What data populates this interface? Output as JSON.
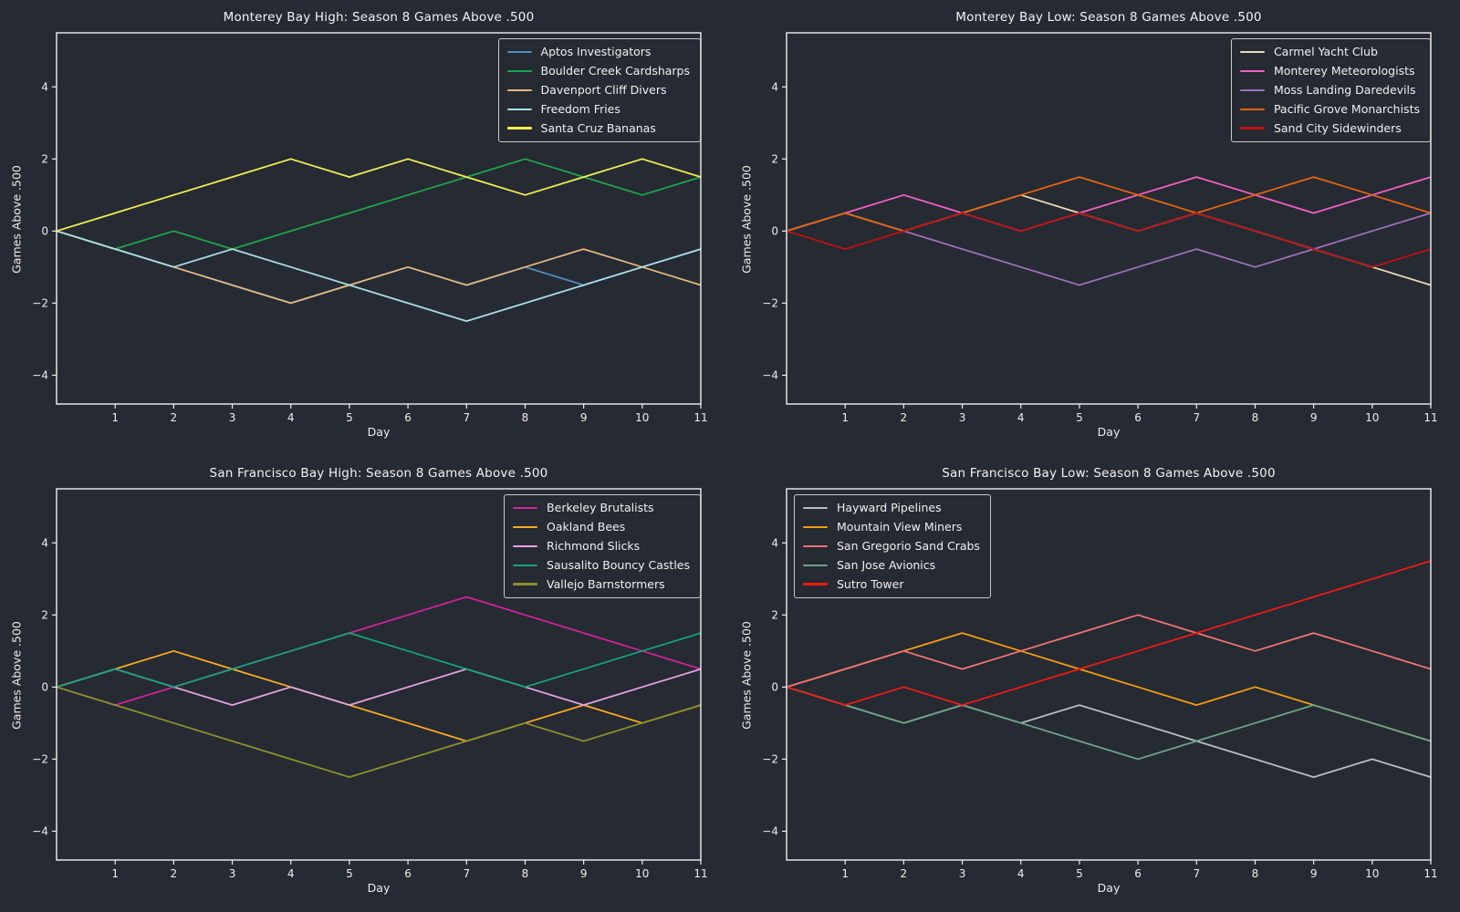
{
  "figure": {
    "background": "#262a32",
    "spine_color": "#f0f0f0",
    "text_color": "#ededed",
    "tick_color": "#ededed"
  },
  "chart_data": [
    {
      "type": "line",
      "title": "Monterey Bay High: Season 8 Games Above .500",
      "xlabel": "Day",
      "ylabel": "Games Above .500",
      "x": [
        0,
        1,
        2,
        3,
        4,
        5,
        6,
        7,
        8,
        9,
        10,
        11
      ],
      "xticks": [
        1,
        2,
        3,
        4,
        5,
        6,
        7,
        8,
        9,
        10,
        11
      ],
      "yticks": [
        -4,
        -2,
        0,
        2,
        4
      ],
      "xlim": [
        0,
        11
      ],
      "ylim": [
        -4.8,
        5.5
      ],
      "grid": false,
      "legend_position": "upper-right",
      "series": [
        {
          "name": "Aptos Investigators",
          "color": "#4e8fc7",
          "values": [
            0,
            -0.5,
            -1,
            -1.5,
            -2,
            -1.5,
            -1,
            -1.5,
            -1,
            -1.5,
            -1,
            -0.5
          ]
        },
        {
          "name": "Boulder Creek Cardsharps",
          "color": "#1ea64b",
          "values": [
            0,
            -0.5,
            0,
            -0.5,
            0,
            0.5,
            1,
            1.5,
            2,
            1.5,
            1,
            1.5
          ]
        },
        {
          "name": "Davenport Cliff Divers",
          "color": "#e2b77e",
          "values": [
            0,
            -0.5,
            -1,
            -1.5,
            -2,
            -1.5,
            -1,
            -1.5,
            -1,
            -0.5,
            -1,
            -1.5
          ]
        },
        {
          "name": "Freedom Fries",
          "color": "#a9dde6",
          "values": [
            0,
            -0.5,
            -1,
            -0.5,
            -1,
            -1.5,
            -2,
            -2.5,
            -2,
            -1.5,
            -1,
            -0.5
          ]
        },
        {
          "name": "Santa Cruz Bananas",
          "color": "#f2ee55",
          "values": [
            0,
            0.5,
            1,
            1.5,
            2,
            1.5,
            2,
            1.5,
            1,
            1.5,
            2,
            1.5
          ]
        }
      ]
    },
    {
      "type": "line",
      "title": "Monterey Bay Low: Season 8 Games Above .500",
      "xlabel": "Day",
      "ylabel": "Games Above .500",
      "x": [
        0,
        1,
        2,
        3,
        4,
        5,
        6,
        7,
        8,
        9,
        10,
        11
      ],
      "xticks": [
        1,
        2,
        3,
        4,
        5,
        6,
        7,
        8,
        9,
        10,
        11
      ],
      "yticks": [
        -4,
        -2,
        0,
        2,
        4
      ],
      "xlim": [
        0,
        11
      ],
      "ylim": [
        -4.8,
        5.5
      ],
      "grid": false,
      "legend_position": "upper-right",
      "series": [
        {
          "name": "Carmel Yacht Club",
          "color": "#e9d8b6",
          "values": [
            0,
            0.5,
            0,
            0.5,
            1,
            0.5,
            0,
            0.5,
            0,
            -0.5,
            -1,
            -1.5
          ]
        },
        {
          "name": "Monterey Meteorologists",
          "color": "#f55fc4",
          "values": [
            0,
            0.5,
            1,
            0.5,
            0,
            0.5,
            1,
            1.5,
            1,
            0.5,
            1,
            1.5
          ]
        },
        {
          "name": "Moss Landing Daredevils",
          "color": "#9b70b7",
          "values": [
            0,
            0.5,
            0,
            -0.5,
            -1,
            -1.5,
            -1,
            -0.5,
            -1,
            -0.5,
            0,
            0.5
          ]
        },
        {
          "name": "Pacific Grove Monarchists",
          "color": "#e46310",
          "values": [
            0,
            0.5,
            0,
            0.5,
            1,
            1.5,
            1,
            0.5,
            1,
            1.5,
            1,
            0.5
          ]
        },
        {
          "name": "Sand City Sidewinders",
          "color": "#c11212",
          "values": [
            0,
            -0.5,
            0,
            0.5,
            0,
            0.5,
            0,
            0.5,
            0,
            -0.5,
            -1,
            -0.5
          ]
        }
      ]
    },
    {
      "type": "line",
      "title": "San Francisco Bay High: Season 8 Games Above .500",
      "xlabel": "Day",
      "ylabel": "Games Above .500",
      "x": [
        0,
        1,
        2,
        3,
        4,
        5,
        6,
        7,
        8,
        9,
        10,
        11
      ],
      "xticks": [
        1,
        2,
        3,
        4,
        5,
        6,
        7,
        8,
        9,
        10,
        11
      ],
      "yticks": [
        -4,
        -2,
        0,
        2,
        4
      ],
      "xlim": [
        0,
        11
      ],
      "ylim": [
        -4.8,
        5.5
      ],
      "grid": false,
      "legend_position": "upper-right",
      "series": [
        {
          "name": "Berkeley Brutalists",
          "color": "#d2219b",
          "values": [
            0,
            -0.5,
            0,
            0.5,
            1,
            1.5,
            2,
            2.5,
            2,
            1.5,
            1,
            0.5
          ]
        },
        {
          "name": "Oakland Bees",
          "color": "#fdab24",
          "values": [
            0,
            0.5,
            1,
            0.5,
            0,
            -0.5,
            -1,
            -1.5,
            -1,
            -0.5,
            -1,
            -0.5
          ]
        },
        {
          "name": "Richmond Slicks",
          "color": "#e6a2e2",
          "values": [
            0,
            0.5,
            0,
            -0.5,
            0,
            -0.5,
            0,
            0.5,
            0,
            -0.5,
            0,
            0.5
          ]
        },
        {
          "name": "Sausalito Bouncy Castles",
          "color": "#14a478",
          "values": [
            0,
            0.5,
            0,
            0.5,
            1,
            1.5,
            1,
            0.5,
            0,
            0.5,
            1,
            1.5
          ]
        },
        {
          "name": "Vallejo Barnstormers",
          "color": "#8b902c",
          "values": [
            0,
            -0.5,
            -1,
            -1.5,
            -2,
            -2.5,
            -2,
            -1.5,
            -1,
            -1.5,
            -1,
            -0.5
          ]
        }
      ]
    },
    {
      "type": "line",
      "title": "San Francisco Bay Low: Season 8 Games Above .500",
      "xlabel": "Day",
      "ylabel": "Games Above .500",
      "x": [
        0,
        1,
        2,
        3,
        4,
        5,
        6,
        7,
        8,
        9,
        10,
        11
      ],
      "xticks": [
        1,
        2,
        3,
        4,
        5,
        6,
        7,
        8,
        9,
        10,
        11
      ],
      "yticks": [
        -4,
        -2,
        0,
        2,
        4
      ],
      "xlim": [
        0,
        11
      ],
      "ylim": [
        -4.8,
        5.5
      ],
      "grid": false,
      "legend_position": "upper-left",
      "series": [
        {
          "name": "Hayward Pipelines",
          "color": "#b9bcc1",
          "values": [
            0,
            -0.5,
            -1,
            -0.5,
            -1,
            -0.5,
            -1,
            -1.5,
            -2,
            -2.5,
            -2,
            -2.5
          ]
        },
        {
          "name": "Mountain View Miners",
          "color": "#f49c13",
          "values": [
            0,
            0.5,
            1,
            1.5,
            1,
            0.5,
            0,
            -0.5,
            0,
            -0.5,
            -1,
            -1.5
          ]
        },
        {
          "name": "San Gregorio Sand Crabs",
          "color": "#f17373",
          "values": [
            0,
            0.5,
            1,
            0.5,
            1,
            1.5,
            2,
            1.5,
            1,
            1.5,
            1,
            0.5
          ]
        },
        {
          "name": "San Jose Avionics",
          "color": "#6ba388",
          "values": [
            0,
            -0.5,
            -1,
            -0.5,
            -1,
            -1.5,
            -2,
            -1.5,
            -1,
            -0.5,
            -1,
            -1.5
          ]
        },
        {
          "name": "Sutro Tower",
          "color": "#ec1b15",
          "values": [
            0,
            -0.5,
            0,
            -0.5,
            0,
            0.5,
            1,
            1.5,
            2,
            2.5,
            3,
            3.5
          ]
        }
      ]
    }
  ]
}
